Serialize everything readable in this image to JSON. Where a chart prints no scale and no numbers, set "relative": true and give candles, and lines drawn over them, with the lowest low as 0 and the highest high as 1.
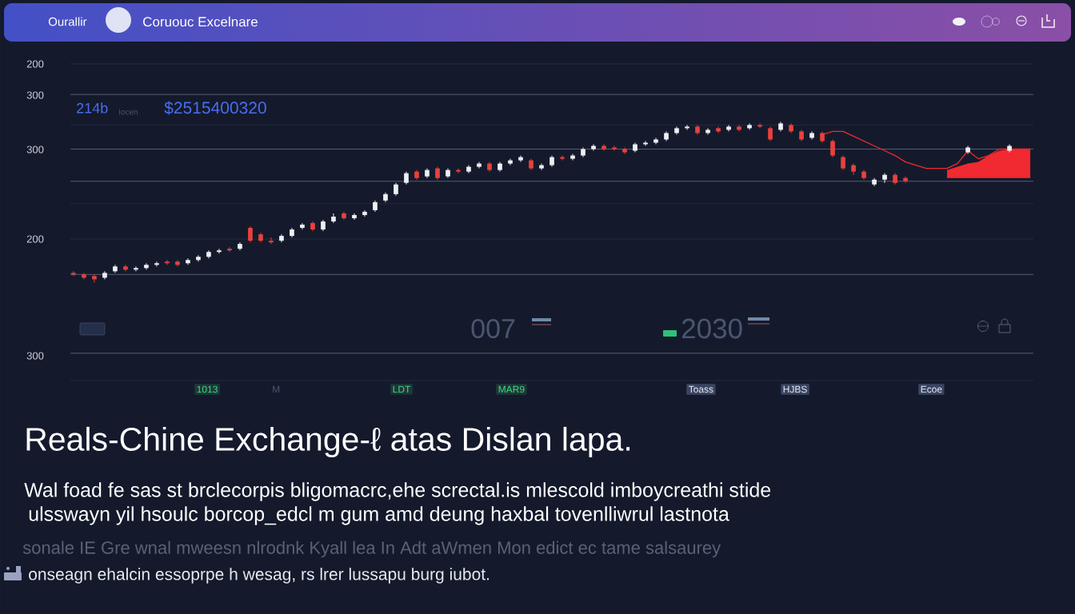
{
  "chart_data": {
    "type": "candlestick",
    "title": "Reals-Chine Exchange-ℓ atas Dislan lapa.",
    "annotations": [
      "Ourallir",
      "Coruouc Excelnare",
      "214b",
      "Iocen",
      "$2515400320",
      "007",
      "2030",
      "1013",
      "M",
      "LDT",
      "MAR9",
      "Toass",
      "HJBS",
      "Ecoe",
      "Wal foad fe sas st brclecorpis bligomacrc,ehe screctal.is mlescold imboycreathi stide",
      "ulsswayn yil hsoulc borcop_edcl m gum amd deung haxbal tovenlliwrul lastnota",
      "sonale IE Gre wnal mweesn nlrodnk Kyall lea In Adt aWmen Mon edict ec tame salsaurey",
      "onseagn ehalcin essoprpe h wesag, rs lrer lussapu burg iubot.",
      "200",
      "300",
      "300",
      "200",
      "300"
    ],
    "relative": true,
    "tick_labels": false,
    "categories": [
      null,
      null,
      null,
      null,
      null,
      null,
      null,
      null,
      null,
      null,
      null,
      null,
      null,
      null,
      null,
      null,
      null,
      null,
      null,
      null,
      null,
      null,
      null,
      null,
      null,
      null,
      null,
      null,
      null,
      null,
      null,
      null,
      null,
      null,
      null,
      null,
      null,
      null,
      null,
      null,
      null,
      null,
      null,
      null,
      null,
      null,
      null,
      null,
      null,
      null,
      null,
      null,
      null,
      null,
      null,
      null,
      null,
      null,
      null,
      null,
      null,
      null,
      null,
      null,
      null,
      null,
      null,
      null,
      null,
      null,
      null,
      null,
      null,
      null,
      null,
      null,
      null,
      null,
      null,
      null,
      null,
      null,
      null,
      null,
      null,
      null,
      null,
      null,
      null,
      null,
      null,
      null,
      null
    ],
    "ohlc": [
      [
        0.06,
        0.07,
        0.04,
        0.05
      ],
      [
        0.05,
        0.06,
        0.02,
        0.03
      ],
      [
        0.04,
        0.05,
        0.0,
        0.02
      ],
      [
        0.03,
        0.07,
        0.02,
        0.06
      ],
      [
        0.07,
        0.11,
        0.06,
        0.1
      ],
      [
        0.1,
        0.11,
        0.07,
        0.08
      ],
      [
        0.08,
        0.1,
        0.07,
        0.09
      ],
      [
        0.09,
        0.12,
        0.08,
        0.11
      ],
      [
        0.11,
        0.13,
        0.1,
        0.12
      ],
      [
        0.13,
        0.14,
        0.11,
        0.12
      ],
      [
        0.13,
        0.14,
        0.1,
        0.11
      ],
      [
        0.12,
        0.15,
        0.11,
        0.14
      ],
      [
        0.14,
        0.17,
        0.13,
        0.16
      ],
      [
        0.16,
        0.2,
        0.15,
        0.19
      ],
      [
        0.19,
        0.21,
        0.18,
        0.2
      ],
      [
        0.21,
        0.22,
        0.19,
        0.2
      ],
      [
        0.21,
        0.25,
        0.2,
        0.24
      ],
      [
        0.34,
        0.35,
        0.25,
        0.26
      ],
      [
        0.3,
        0.31,
        0.25,
        0.26
      ],
      [
        0.26,
        0.28,
        0.24,
        0.25
      ],
      [
        0.26,
        0.3,
        0.25,
        0.29
      ],
      [
        0.29,
        0.34,
        0.28,
        0.33
      ],
      [
        0.34,
        0.37,
        0.33,
        0.36
      ],
      [
        0.37,
        0.38,
        0.32,
        0.33
      ],
      [
        0.33,
        0.39,
        0.32,
        0.38
      ],
      [
        0.38,
        0.43,
        0.37,
        0.41
      ],
      [
        0.43,
        0.44,
        0.39,
        0.4
      ],
      [
        0.4,
        0.43,
        0.39,
        0.42
      ],
      [
        0.42,
        0.45,
        0.41,
        0.44
      ],
      [
        0.45,
        0.51,
        0.44,
        0.5
      ],
      [
        0.51,
        0.56,
        0.5,
        0.55
      ],
      [
        0.55,
        0.62,
        0.54,
        0.61
      ],
      [
        0.62,
        0.69,
        0.61,
        0.68
      ],
      [
        0.69,
        0.7,
        0.64,
        0.65
      ],
      [
        0.66,
        0.71,
        0.65,
        0.7
      ],
      [
        0.71,
        0.72,
        0.64,
        0.65
      ],
      [
        0.66,
        0.71,
        0.65,
        0.7
      ],
      [
        0.7,
        0.71,
        0.68,
        0.69
      ],
      [
        0.69,
        0.73,
        0.68,
        0.72
      ],
      [
        0.72,
        0.75,
        0.71,
        0.74
      ],
      [
        0.74,
        0.75,
        0.69,
        0.7
      ],
      [
        0.7,
        0.75,
        0.69,
        0.74
      ],
      [
        0.74,
        0.77,
        0.73,
        0.76
      ],
      [
        0.76,
        0.79,
        0.75,
        0.78
      ],
      [
        0.76,
        0.77,
        0.7,
        0.71
      ],
      [
        0.71,
        0.74,
        0.7,
        0.73
      ],
      [
        0.73,
        0.79,
        0.72,
        0.78
      ],
      [
        0.78,
        0.79,
        0.76,
        0.77
      ],
      [
        0.77,
        0.8,
        0.76,
        0.79
      ],
      [
        0.79,
        0.84,
        0.78,
        0.83
      ],
      [
        0.83,
        0.86,
        0.82,
        0.85
      ],
      [
        0.85,
        0.86,
        0.82,
        0.83
      ],
      [
        0.84,
        0.85,
        0.82,
        0.83
      ],
      [
        0.83,
        0.84,
        0.8,
        0.81
      ],
      [
        0.82,
        0.87,
        0.81,
        0.86
      ],
      [
        0.86,
        0.88,
        0.85,
        0.87
      ],
      [
        0.87,
        0.9,
        0.86,
        0.89
      ],
      [
        0.89,
        0.94,
        0.88,
        0.93
      ],
      [
        0.93,
        0.97,
        0.92,
        0.96
      ],
      [
        0.96,
        0.98,
        0.95,
        0.97
      ],
      [
        0.97,
        0.98,
        0.92,
        0.93
      ],
      [
        0.93,
        0.96,
        0.92,
        0.95
      ],
      [
        0.96,
        0.97,
        0.93,
        0.94
      ],
      [
        0.95,
        0.98,
        0.94,
        0.97
      ],
      [
        0.97,
        0.98,
        0.94,
        0.95
      ],
      [
        0.96,
        0.99,
        0.95,
        0.98
      ],
      [
        0.98,
        0.99,
        0.96,
        0.97
      ],
      [
        0.96,
        0.97,
        0.88,
        0.89
      ],
      [
        0.95,
        1.0,
        0.94,
        0.99
      ],
      [
        0.98,
        0.99,
        0.93,
        0.94
      ],
      [
        0.94,
        0.95,
        0.88,
        0.89
      ],
      [
        0.9,
        0.94,
        0.89,
        0.93
      ],
      [
        0.93,
        0.94,
        0.87,
        0.88
      ],
      [
        0.88,
        0.89,
        0.78,
        0.79
      ],
      [
        0.78,
        0.79,
        0.7,
        0.71
      ],
      [
        0.73,
        0.74,
        0.67,
        0.69
      ],
      [
        0.69,
        0.7,
        0.64,
        0.65
      ],
      [
        0.61,
        0.65,
        0.6,
        0.64
      ],
      [
        0.64,
        0.68,
        0.62,
        0.67
      ],
      [
        0.67,
        0.68,
        0.61,
        0.62
      ],
      [
        0.65,
        0.66,
        0.62,
        0.63
      ],
      null,
      null,
      null,
      null,
      null,
      [
        0.81,
        0.85,
        0.8,
        0.84
      ],
      null,
      null,
      null,
      [
        0.82,
        0.86,
        0.81,
        0.85
      ],
      null,
      null
    ],
    "colors": [
      "#e8413c",
      "#e8413c",
      "#e8413c",
      "#eceff4",
      "#eceff4",
      "#e8413c",
      "#eceff4",
      "#eceff4",
      "#eceff4",
      "#e8413c",
      "#e8413c",
      "#eceff4",
      "#eceff4",
      "#eceff4",
      "#eceff4",
      "#e8413c",
      "#eceff4",
      "#e8413c",
      "#e8413c",
      "#e8413c",
      "#eceff4",
      "#eceff4",
      "#eceff4",
      "#e8413c",
      "#eceff4",
      "#eceff4",
      "#e8413c",
      "#eceff4",
      "#eceff4",
      "#eceff4",
      "#eceff4",
      "#eceff4",
      "#eceff4",
      "#e8413c",
      "#eceff4",
      "#e8413c",
      "#eceff4",
      "#e8413c",
      "#eceff4",
      "#eceff4",
      "#e8413c",
      "#eceff4",
      "#eceff4",
      "#eceff4",
      "#e8413c",
      "#eceff4",
      "#eceff4",
      "#e8413c",
      "#eceff4",
      "#eceff4",
      "#eceff4",
      "#e8413c",
      "#e8413c",
      "#e8413c",
      "#eceff4",
      "#eceff4",
      "#eceff4",
      "#eceff4",
      "#eceff4",
      "#eceff4",
      "#e8413c",
      "#eceff4",
      "#e8413c",
      "#eceff4",
      "#e8413c",
      "#eceff4",
      "#e8413c",
      "#e8413c",
      "#eceff4",
      "#e8413c",
      "#e8413c",
      "#eceff4",
      "#e8413c",
      "#e8413c",
      "#e8413c",
      "#e8413c",
      "#e8413c",
      "#eceff4",
      "#eceff4",
      "#e8413c",
      "#e8413c",
      null,
      null,
      null,
      null,
      null,
      "#eceff4",
      null,
      null,
      null,
      "#eceff4",
      null,
      null
    ],
    "series": [
      {
        "type": "line",
        "color": "#f02a30",
        "values": [
          null,
          null,
          null,
          null,
          null,
          null,
          null,
          null,
          null,
          null,
          null,
          null,
          null,
          null,
          null,
          null,
          null,
          null,
          null,
          null,
          null,
          null,
          null,
          null,
          null,
          null,
          null,
          null,
          null,
          null,
          null,
          null,
          null,
          null,
          null,
          null,
          null,
          null,
          null,
          null,
          null,
          null,
          null,
          null,
          null,
          null,
          null,
          null,
          null,
          null,
          null,
          null,
          null,
          null,
          null,
          null,
          null,
          null,
          null,
          null,
          null,
          null,
          null,
          null,
          null,
          null,
          null,
          null,
          null,
          null,
          null,
          null,
          0.92,
          0.94,
          0.94,
          0.91,
          0.88,
          0.85,
          0.82,
          0.79,
          0.75,
          0.73,
          0.71,
          0.71,
          0.71,
          0.74,
          0.82,
          0.77,
          0.79,
          0.83,
          0.83,
          0.83,
          0.83
        ],
        "lower": [
          null,
          null,
          null,
          null,
          null,
          null,
          null,
          null,
          null,
          null,
          null,
          null,
          null,
          null,
          null,
          null,
          null,
          null,
          null,
          null,
          null,
          null,
          null,
          null,
          null,
          null,
          null,
          null,
          null,
          null,
          null,
          null,
          null,
          null,
          null,
          null,
          null,
          null,
          null,
          null,
          null,
          null,
          null,
          null,
          null,
          null,
          null,
          null,
          null,
          null,
          null,
          null,
          null,
          null,
          null,
          null,
          null,
          null,
          null,
          null,
          null,
          null,
          null,
          null,
          null,
          null,
          null,
          null,
          null,
          null,
          null,
          null,
          null,
          null,
          null,
          null,
          null,
          null,
          null,
          null,
          null,
          null,
          null,
          null,
          0.65,
          0.65,
          0.65,
          0.65,
          0.65,
          0.65,
          0.65,
          0.65,
          0.65
        ],
        "upper": [
          null,
          null,
          null,
          null,
          null,
          null,
          null,
          null,
          null,
          null,
          null,
          null,
          null,
          null,
          null,
          null,
          null,
          null,
          null,
          null,
          null,
          null,
          null,
          null,
          null,
          null,
          null,
          null,
          null,
          null,
          null,
          null,
          null,
          null,
          null,
          null,
          null,
          null,
          null,
          null,
          null,
          null,
          null,
          null,
          null,
          null,
          null,
          null,
          null,
          null,
          null,
          null,
          null,
          null,
          null,
          null,
          null,
          null,
          null,
          null,
          null,
          null,
          null,
          null,
          null,
          null,
          null,
          null,
          null,
          null,
          null,
          null,
          null,
          null,
          null,
          null,
          null,
          null,
          null,
          null,
          null,
          null,
          null,
          null,
          0.7,
          0.72,
          0.74,
          0.75,
          0.79,
          0.82,
          0.83,
          0.83,
          0.83
        ]
      }
    ],
    "ref_lines": [
      {
        "axis": "y",
        "value": 1.36,
        "color": "#262c42"
      },
      {
        "axis": "y",
        "value": 1.17,
        "color": "#5f6478"
      },
      {
        "axis": "y",
        "value": 0.98,
        "color": "#262c42"
      },
      {
        "axis": "y",
        "value": 0.83,
        "color": "#5f6478"
      },
      {
        "axis": "y",
        "value": 0.63,
        "color": "#5f6478"
      },
      {
        "axis": "y",
        "value": 0.49,
        "color": "#262c42"
      },
      {
        "axis": "y",
        "value": 0.27,
        "color": "#262c42"
      },
      {
        "axis": "y",
        "value": 0.05,
        "color": "#5f6478"
      },
      {
        "axis": "y",
        "value": -0.44,
        "color": "#5f6478"
      },
      {
        "axis": "y",
        "value": -0.61,
        "color": "#262c42"
      }
    ]
  }
}
